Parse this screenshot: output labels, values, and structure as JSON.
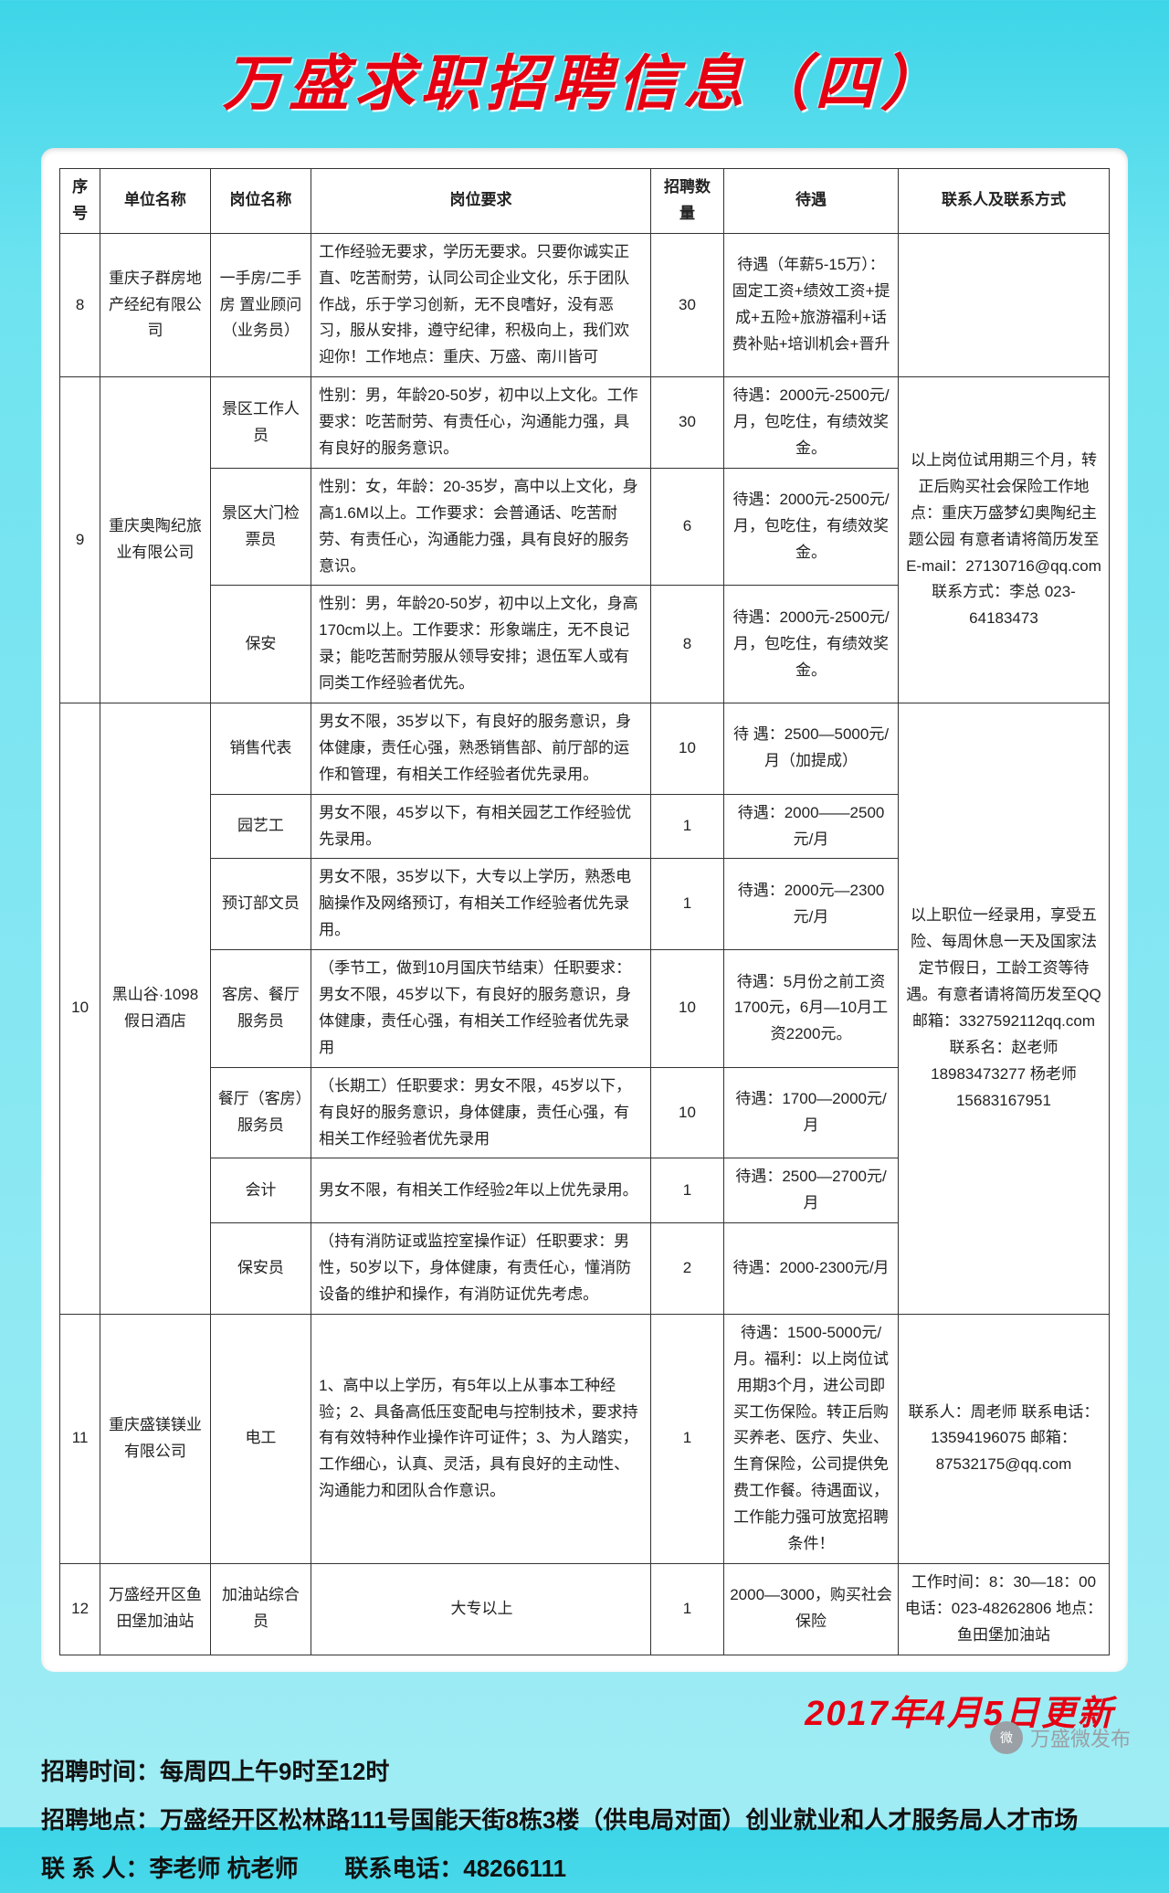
{
  "title": "万盛求职招聘信息（四）",
  "update_text": "2017年4月5日更新",
  "headers": [
    "序号",
    "单位名称",
    "岗位名称",
    "岗位要求",
    "招聘数量",
    "待遇",
    "联系人及联系方式"
  ],
  "rows": [
    {
      "no": "8",
      "org": "重庆子群房地产经纪有限公司",
      "post": "一手房/二手房 置业顾问（业务员）",
      "req": "工作经验无要求，学历无要求。只要你诚实正直、吃苦耐劳，认同公司企业文化，乐于团队作战，乐于学习创新，无不良嗜好，没有恶习，服从安排，遵守纪律，积极向上，我们欢迎你！工作地点：重庆、万盛、南川皆可",
      "count": "30",
      "treat": "待遇（年薪5-15万）：固定工资+绩效工资+提成+五险+旅游福利+话费补贴+培训机会+晋升",
      "contact": ""
    },
    {
      "no": "9",
      "org": "重庆奥陶纪旅业有限公司",
      "contact": "以上岗位试用期三个月，转正后购买社会保险工作地点：重庆万盛梦幻奥陶纪主题公园 有意者请将简历发至 E-mail：27130716@qq.com 联系方式：李总 023-64183473",
      "sub": [
        {
          "post": "景区工作人员",
          "req": "性别：男，年龄20-50岁，初中以上文化。工作要求：吃苦耐劳、有责任心，沟通能力强，具有良好的服务意识。",
          "count": "30",
          "treat": "待遇：2000元-2500元/月，包吃住，有绩效奖金。"
        },
        {
          "post": "景区大门检票员",
          "req": "性别：女，年龄：20-35岁，高中以上文化，身高1.6M以上。工作要求：会普通话、吃苦耐劳、有责任心，沟通能力强，具有良好的服务意识。",
          "count": "6",
          "treat": "待遇：2000元-2500元/月，包吃住，有绩效奖金。"
        },
        {
          "post": "保安",
          "req": "性别：男，年龄20-50岁，初中以上文化，身高170cm以上。工作要求：形象端庄，无不良记录；能吃苦耐劳服从领导安排；退伍军人或有同类工作经验者优先。",
          "count": "8",
          "treat": "待遇：2000元-2500元/月，包吃住，有绩效奖金。"
        }
      ]
    },
    {
      "no": "10",
      "org": "黑山谷·1098假日酒店",
      "contact": "以上职位一经录用，享受五险、每周休息一天及国家法定节假日，工龄工资等待遇。有意者请将简历发至QQ邮箱：3327592112qq.com 联系名：赵老师 18983473277 杨老师 15683167951",
      "sub": [
        {
          "post": "销售代表",
          "req": "男女不限，35岁以下，有良好的服务意识，身体健康，责任心强，熟悉销售部、前厅部的运作和管理，有相关工作经验者优先录用。",
          "count": "10",
          "treat": "待 遇：2500—5000元/月（加提成）"
        },
        {
          "post": "园艺工",
          "req": "男女不限，45岁以下，有相关园艺工作经验优先录用。",
          "count": "1",
          "treat": "待遇：2000——2500元/月"
        },
        {
          "post": "预订部文员",
          "req": "男女不限，35岁以下，大专以上学历，熟悉电脑操作及网络预订，有相关工作经验者优先录用。",
          "count": "1",
          "treat": "待遇：2000元—2300元/月"
        },
        {
          "post": "客房、餐厅服务员",
          "req": "（季节工，做到10月国庆节结束）任职要求：男女不限，45岁以下，有良好的服务意识，身体健康，责任心强，有相关工作经验者优先录用",
          "count": "10",
          "treat": "待遇：5月份之前工资1700元，6月—10月工资2200元。"
        },
        {
          "post": "餐厅（客房）服务员",
          "req": "（长期工）任职要求：男女不限，45岁以下，有良好的服务意识，身体健康，责任心强，有相关工作经验者优先录用",
          "count": "10",
          "treat": "待遇：1700—2000元/月"
        },
        {
          "post": "会计",
          "req": "男女不限，有相关工作经验2年以上优先录用。",
          "count": "1",
          "treat": "待遇：2500—2700元/月"
        },
        {
          "post": "保安员",
          "req": "（持有消防证或监控室操作证）任职要求：男性，50岁以下，身体健康，有责任心，懂消防设备的维护和操作，有消防证优先考虑。",
          "count": "2",
          "treat": "待遇：2000-2300元/月"
        }
      ]
    },
    {
      "no": "11",
      "org": "重庆盛镁镁业有限公司",
      "post": "电工",
      "req": "1、高中以上学历，有5年以上从事本工种经验；2、具备高低压变配电与控制技术，要求持有有效特种作业操作许可证件；3、为人踏实，工作细心，认真、灵活，具有良好的主动性、沟通能力和团队合作意识。",
      "count": "1",
      "treat": "待遇：1500-5000元/月。福利：以上岗位试用期3个月，进公司即买工伤保险。转正后购买养老、医疗、失业、生育保险，公司提供免费工作餐。待遇面议，工作能力强可放宽招聘条件！",
      "contact": "联系人：周老师 联系电话：13594196075 邮箱：87532175@qq.com"
    },
    {
      "no": "12",
      "org": "万盛经开区鱼田堡加油站",
      "post": "加油站综合员",
      "req": "大专以上",
      "count": "1",
      "treat": "2000—3000，购买社会保险",
      "contact": "工作时间：8：30—18：00 电话：023-48262806 地点：鱼田堡加油站"
    }
  ],
  "footer": {
    "l1": "招聘时间：每周四上午9时至12时",
    "l2": "招聘地点：万盛经开区松林路111号国能天街8栋3楼（供电局对面）创业就业和人才服务局人才市场",
    "l3a": "联 系 人：李老师  杭老师",
    "l3b": "联系电话：48266111"
  },
  "stamp": "万盛微发布"
}
